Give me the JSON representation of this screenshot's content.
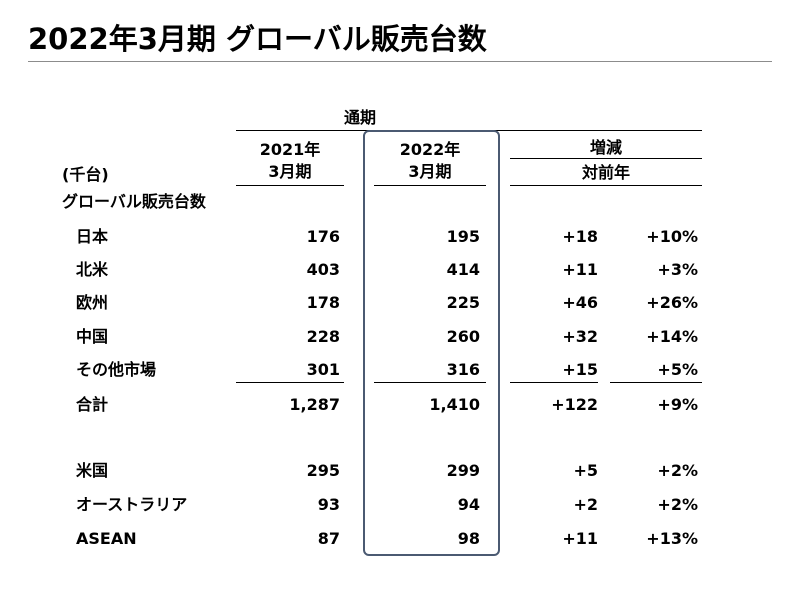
{
  "title": "2022年3月期 グローバル販売台数",
  "header": {
    "period": "通期",
    "col_2021_line1": "2021年",
    "col_2021_line2": "3月期",
    "col_2022_line1": "2022年",
    "col_2022_line2": "3月期",
    "change_line1": "増減",
    "change_line2": "対前年",
    "unit": "(千台)",
    "section_label": "グローバル販売台数"
  },
  "rows": [
    {
      "label": "日本",
      "v2021": "176",
      "v2022": "195",
      "diff": "+18",
      "pct": "+10%"
    },
    {
      "label": "北米",
      "v2021": "403",
      "v2022": "414",
      "diff": "+11",
      "pct": "+3%"
    },
    {
      "label": "欧州",
      "v2021": "178",
      "v2022": "225",
      "diff": "+46",
      "pct": "+26%"
    },
    {
      "label": "中国",
      "v2021": "228",
      "v2022": "260",
      "diff": "+32",
      "pct": "+14%"
    },
    {
      "label": "その他市場",
      "v2021": "301",
      "v2022": "316",
      "diff": "+15",
      "pct": "+5%"
    }
  ],
  "total": {
    "label": "合計",
    "v2021": "1,287",
    "v2022": "1,410",
    "diff": "+122",
    "pct": "+9%"
  },
  "extra_rows": [
    {
      "label": "米国",
      "v2021": "295",
      "v2022": "299",
      "diff": "+5",
      "pct": "+2%"
    },
    {
      "label": "オーストラリア",
      "v2021": "93",
      "v2022": "94",
      "diff": "+2",
      "pct": "+2%"
    },
    {
      "label": "ASEAN",
      "v2021": "87",
      "v2022": "98",
      "diff": "+11",
      "pct": "+13%"
    }
  ],
  "colors": {
    "highlight_border": "#4b5a72",
    "title_rule": "#8c8c8c"
  }
}
